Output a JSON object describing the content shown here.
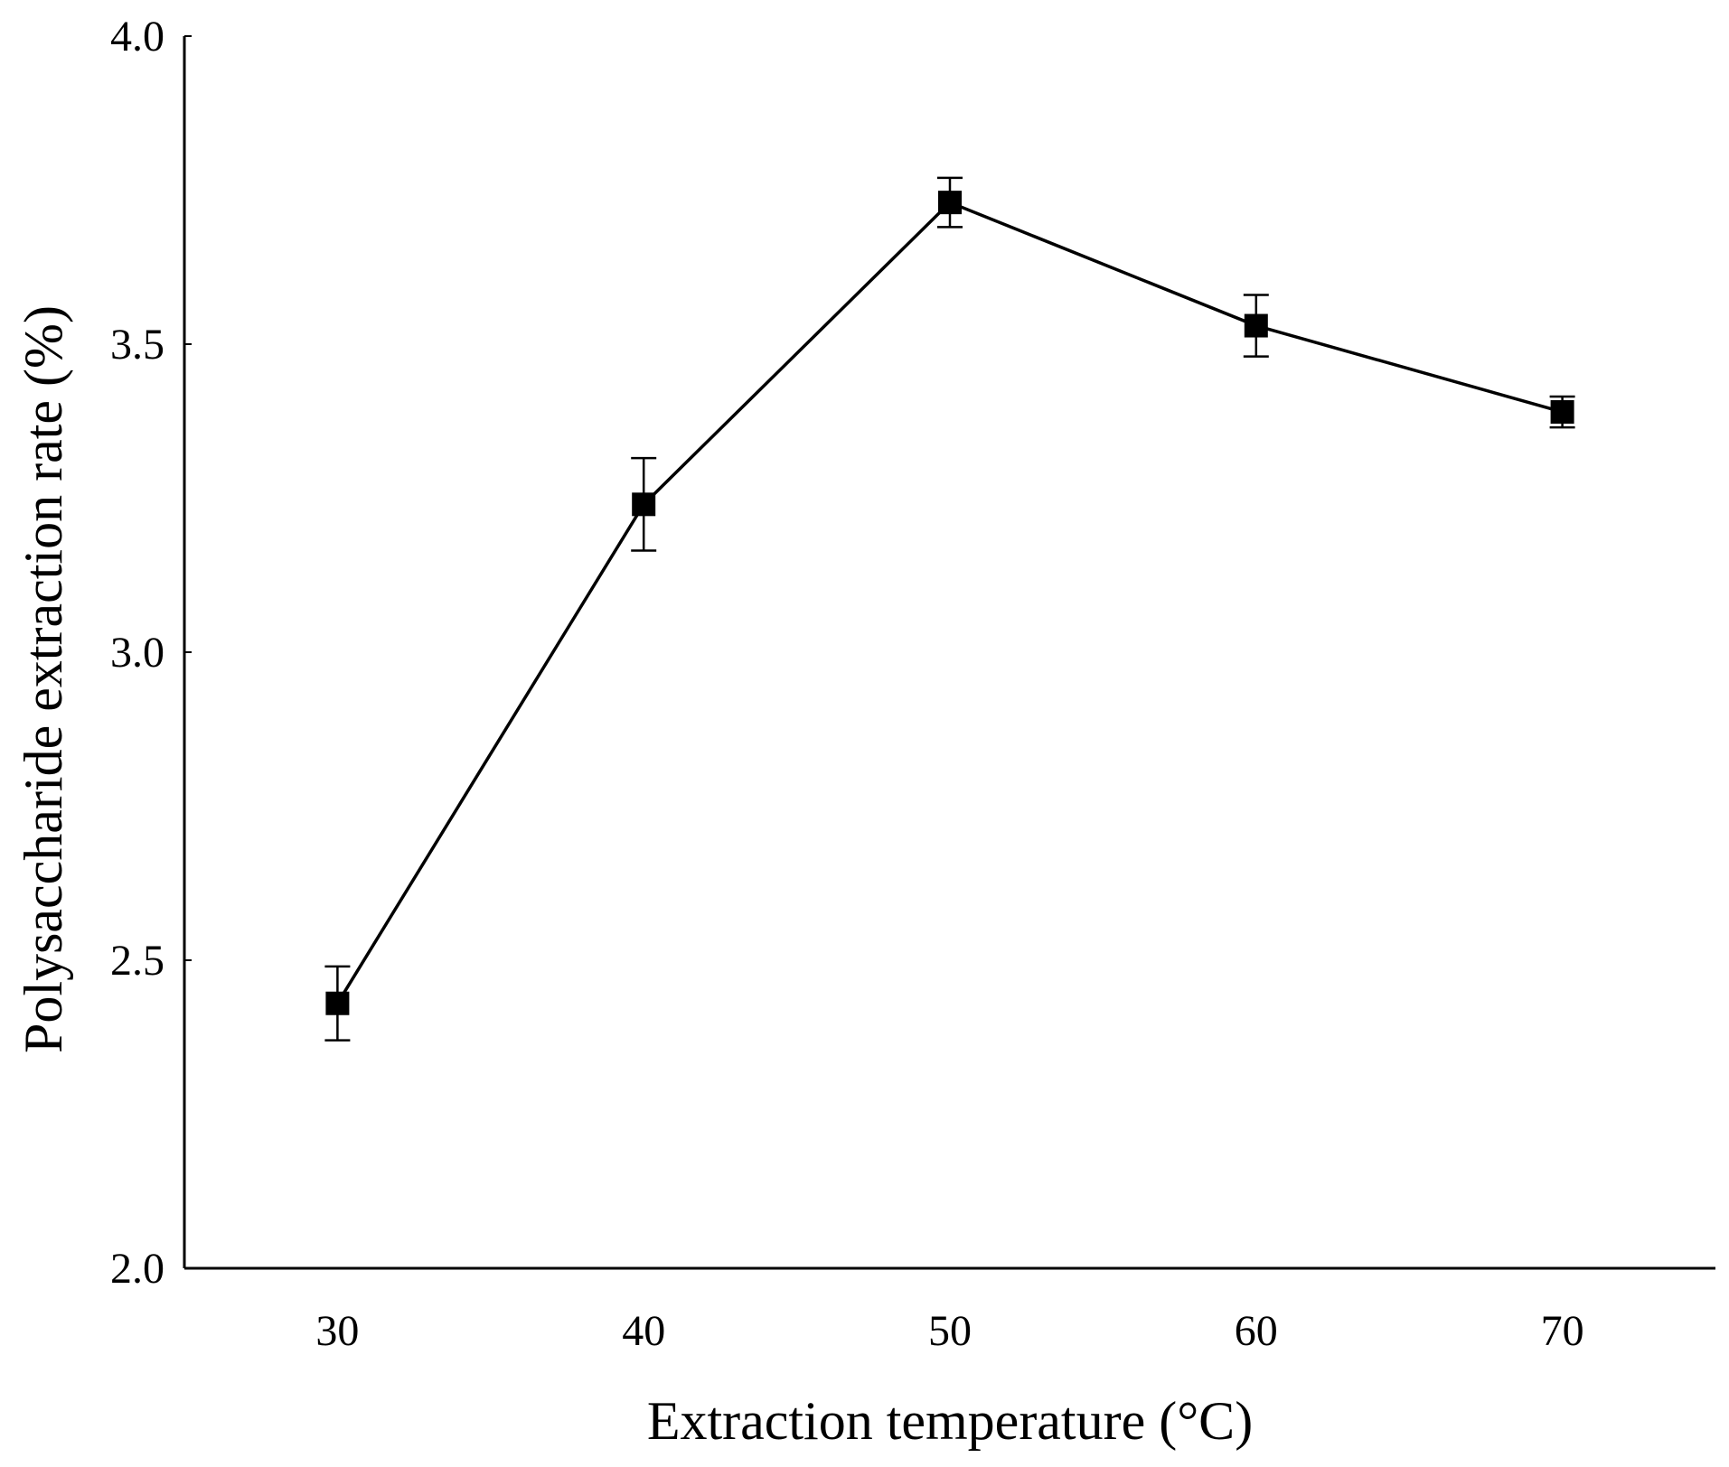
{
  "chart_data": {
    "type": "line",
    "title": "",
    "xlabel": "Extraction temperature (°C)",
    "ylabel": "Polysaccharide extraction rate (%)",
    "x": [
      30,
      40,
      50,
      60,
      70
    ],
    "x_tick_labels": [
      "30",
      "40",
      "50",
      "60",
      "70"
    ],
    "xlim": [
      25,
      75
    ],
    "ylim": [
      2.0,
      4.0
    ],
    "y_ticks": [
      2.0,
      2.5,
      3.0,
      3.5,
      4.0
    ],
    "y_tick_labels": [
      "2.0",
      "2.5",
      "3.0",
      "3.5",
      "4.0"
    ],
    "grid": false,
    "series": [
      {
        "name": "Polysaccharide extraction rate",
        "values": [
          2.43,
          3.24,
          3.73,
          3.53,
          3.39
        ],
        "error": [
          0.06,
          0.075,
          0.04,
          0.05,
          0.025
        ],
        "marker": "square",
        "color": "#000000"
      }
    ]
  }
}
